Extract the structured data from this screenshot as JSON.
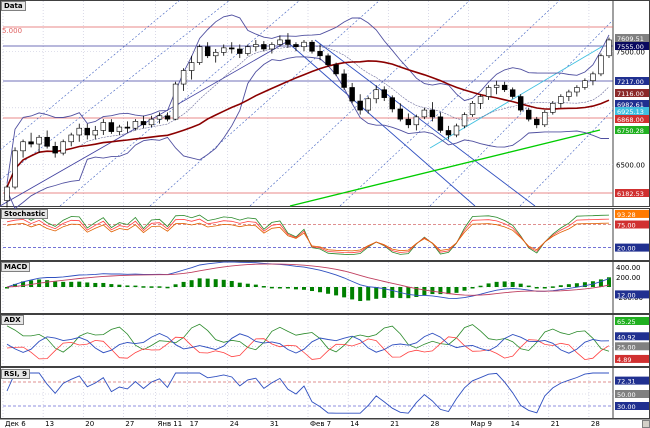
{
  "panes": {
    "price": {
      "label": "Data",
      "level_label": "5.000"
    },
    "stochastic": {
      "label": "Stochastic"
    },
    "macd": {
      "label": "MACD"
    },
    "adx": {
      "label": "ADX"
    },
    "rsi": {
      "label": "RSI, 9"
    }
  },
  "colors": {
    "grid": "#c0c0d8",
    "candle_up": "#ffffff",
    "candle_down": "#000000",
    "bollinger": "#5050a0",
    "ma_dark_red": "#8b0000",
    "trend_green": "#00cc00",
    "channel_blue": "#3050c0",
    "channel_cyan": "#40c0e0",
    "level_red": "#e06060",
    "level_blue": "#4040a0",
    "stoch_orange": "#e06000",
    "stoch_red": "#ff4040",
    "stoch_green": "#2a8a2a",
    "macd_hist": "#008000",
    "adx_green": "#2a8a2a",
    "adx_red": "#ff4040",
    "adx_blue": "#3050c0",
    "rsi_blue": "#3050c0",
    "tag_orange": "#ff7a00",
    "tag_darkred": "#8b2a2a",
    "tag_blue": "#203090",
    "tag_red": "#d03030",
    "tag_navy": "#0a0a60",
    "tag_cyan": "#40c0e0",
    "tag_green": "#20b020",
    "tag_gray": "#808080"
  },
  "x_axis": {
    "labels": [
      "Дек 6",
      "13",
      "20",
      "27",
      "Янв 11",
      "17",
      "24",
      "31",
      "Фев 7",
      "14",
      "21",
      "28",
      "Мар 9",
      "14",
      "21",
      "28"
    ]
  },
  "y_axis": {
    "price_ticks": [
      "7500.00",
      "7000.00",
      "6500.00"
    ],
    "price_tags": [
      {
        "text": "7609.51",
        "color_key": "tag_gray"
      },
      {
        "text": "7555.00",
        "color_key": "tag_navy"
      },
      {
        "text": "7217.00",
        "color_key": "tag_blue"
      },
      {
        "text": "7116.00",
        "color_key": "tag_darkred"
      },
      {
        "text": "6982.61",
        "color_key": "tag_blue"
      },
      {
        "text": "6925.13",
        "color_key": "tag_cyan"
      },
      {
        "text": "6868.00",
        "color_key": "tag_red"
      },
      {
        "text": "6750.28",
        "color_key": "tag_green"
      },
      {
        "text": "6182.53",
        "color_key": "tag_red"
      }
    ],
    "stoch_tags": [
      {
        "text": "93.28",
        "color_key": "tag_orange"
      },
      {
        "text": "75.00",
        "color_key": "tag_red"
      },
      {
        "text": "20.00",
        "color_key": "tag_blue"
      }
    ],
    "macd_ticks": [
      "400.00",
      "200.00",
      "-200.00"
    ],
    "macd_tags": [
      {
        "text": "12.00",
        "color_key": "tag_blue"
      }
    ],
    "adx_tags": [
      {
        "text": "65.25",
        "color_key": "tag_green"
      },
      {
        "text": "40.92",
        "color_key": "tag_blue"
      },
      {
        "text": "25.00",
        "color_key": "tag_gray"
      },
      {
        "text": "4.89",
        "color_key": "tag_red"
      }
    ],
    "rsi_tags": [
      {
        "text": "72.31",
        "color_key": "tag_blue"
      },
      {
        "text": "50.00",
        "color_key": "tag_gray"
      },
      {
        "text": "30.00",
        "color_key": "tag_blue"
      }
    ]
  },
  "chart_data": [
    {
      "type": "candlestick",
      "title": "Data",
      "ylim": [
        6150,
        7900
      ],
      "candles": [
        [
          6180,
          6320,
          6120,
          6300
        ],
        [
          6300,
          6650,
          6280,
          6620
        ],
        [
          6620,
          6720,
          6560,
          6700
        ],
        [
          6700,
          6780,
          6650,
          6680
        ],
        [
          6680,
          6760,
          6600,
          6740
        ],
        [
          6740,
          6800,
          6640,
          6660
        ],
        [
          6660,
          6700,
          6560,
          6600
        ],
        [
          6600,
          6720,
          6580,
          6700
        ],
        [
          6700,
          6780,
          6660,
          6760
        ],
        [
          6760,
          6860,
          6700,
          6820
        ],
        [
          6820,
          6860,
          6720,
          6760
        ],
        [
          6760,
          6840,
          6720,
          6800
        ],
        [
          6800,
          6900,
          6760,
          6870
        ],
        [
          6870,
          6900,
          6770,
          6790
        ],
        [
          6790,
          6850,
          6760,
          6830
        ],
        [
          6830,
          6880,
          6780,
          6820
        ],
        [
          6820,
          6900,
          6800,
          6880
        ],
        [
          6880,
          6930,
          6820,
          6850
        ],
        [
          6850,
          6930,
          6830,
          6900
        ],
        [
          6900,
          6960,
          6860,
          6930
        ],
        [
          6930,
          6960,
          6880,
          6900
        ],
        [
          6900,
          7230,
          6890,
          7210
        ],
        [
          7210,
          7350,
          7150,
          7330
        ],
        [
          7330,
          7460,
          7250,
          7400
        ],
        [
          7400,
          7560,
          7380,
          7540
        ],
        [
          7540,
          7580,
          7440,
          7460
        ],
        [
          7460,
          7520,
          7400,
          7490
        ],
        [
          7490,
          7560,
          7460,
          7530
        ],
        [
          7530,
          7580,
          7480,
          7520
        ],
        [
          7520,
          7560,
          7440,
          7480
        ],
        [
          7480,
          7560,
          7460,
          7540
        ],
        [
          7540,
          7600,
          7500,
          7560
        ],
        [
          7560,
          7590,
          7500,
          7520
        ],
        [
          7520,
          7580,
          7480,
          7560
        ],
        [
          7560,
          7640,
          7540,
          7600
        ],
        [
          7600,
          7660,
          7530,
          7560
        ],
        [
          7560,
          7580,
          7500,
          7540
        ],
        [
          7540,
          7600,
          7500,
          7580
        ],
        [
          7580,
          7600,
          7480,
          7500
        ],
        [
          7500,
          7560,
          7420,
          7460
        ],
        [
          7460,
          7480,
          7360,
          7380
        ],
        [
          7380,
          7400,
          7280,
          7300
        ],
        [
          7300,
          7340,
          7160,
          7180
        ],
        [
          7180,
          7220,
          7040,
          7060
        ],
        [
          7060,
          7120,
          6940,
          6980
        ],
        [
          6980,
          7100,
          6950,
          7080
        ],
        [
          7080,
          7200,
          7040,
          7160
        ],
        [
          7160,
          7190,
          7060,
          7090
        ],
        [
          7090,
          7110,
          6960,
          6990
        ],
        [
          6990,
          7040,
          6880,
          6900
        ],
        [
          6900,
          6950,
          6820,
          6850
        ],
        [
          6850,
          6940,
          6800,
          6920
        ],
        [
          6920,
          7000,
          6900,
          6980
        ],
        [
          6980,
          7050,
          6880,
          6920
        ],
        [
          6920,
          6960,
          6780,
          6800
        ],
        [
          6800,
          6840,
          6720,
          6760
        ],
        [
          6760,
          6860,
          6740,
          6840
        ],
        [
          6840,
          6960,
          6820,
          6940
        ],
        [
          6940,
          7060,
          6920,
          7040
        ],
        [
          7040,
          7120,
          6990,
          7100
        ],
        [
          7100,
          7200,
          7070,
          7180
        ],
        [
          7180,
          7240,
          7120,
          7200
        ],
        [
          7200,
          7230,
          7140,
          7160
        ],
        [
          7160,
          7180,
          7080,
          7100
        ],
        [
          7100,
          7120,
          6960,
          6980
        ],
        [
          6980,
          7000,
          6880,
          6900
        ],
        [
          6900,
          6920,
          6820,
          6850
        ],
        [
          6850,
          6980,
          6830,
          6960
        ],
        [
          6960,
          7060,
          6940,
          7040
        ],
        [
          7040,
          7120,
          7000,
          7100
        ],
        [
          7100,
          7160,
          7060,
          7140
        ],
        [
          7140,
          7200,
          7100,
          7180
        ],
        [
          7180,
          7260,
          7160,
          7240
        ],
        [
          7240,
          7320,
          7200,
          7300
        ],
        [
          7300,
          7480,
          7280,
          7460
        ],
        [
          7460,
          7620,
          7440,
          7600
        ]
      ]
    }
  ]
}
